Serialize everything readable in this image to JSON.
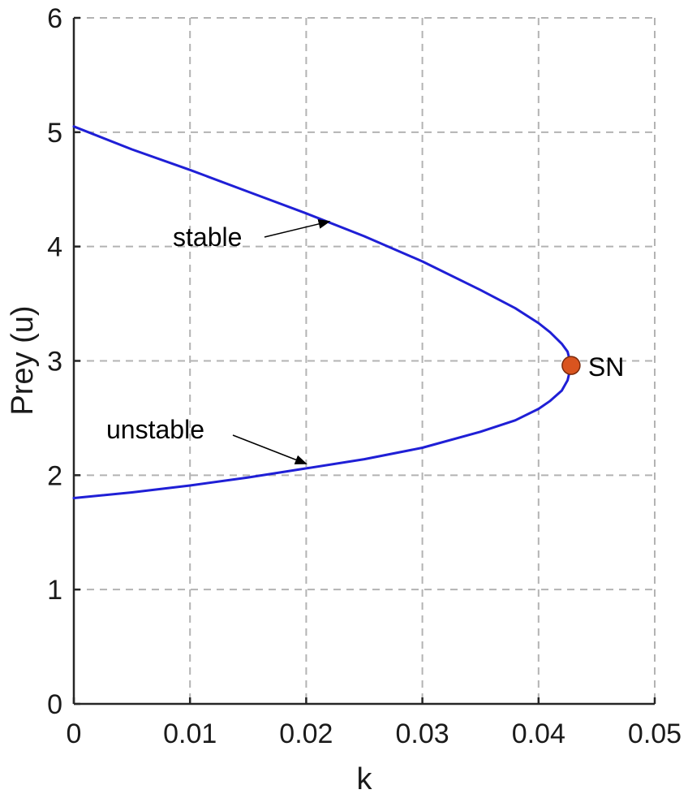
{
  "chart_data": {
    "type": "line",
    "xlabel": "k",
    "ylabel": "Prey (u)",
    "xlim": [
      0,
      0.05
    ],
    "ylim": [
      0,
      6
    ],
    "xticks": [
      0,
      0.01,
      0.02,
      0.03,
      0.04,
      0.05
    ],
    "xtick_labels": [
      "0",
      "0.01",
      "0.02",
      "0.03",
      "0.04",
      "0.05"
    ],
    "yticks": [
      0,
      1,
      2,
      3,
      4,
      5,
      6
    ],
    "ytick_labels": [
      "0",
      "1",
      "2",
      "3",
      "4",
      "5",
      "6"
    ],
    "grid": true,
    "line_color": "#1f1fd6",
    "marker_color": "#d9541f",
    "series": [
      {
        "x": [
          0.0,
          0.005,
          0.01,
          0.015,
          0.02,
          0.025,
          0.03,
          0.035,
          0.038,
          0.04,
          0.041,
          0.042,
          0.0425,
          0.0428
        ],
        "y": [
          5.05,
          4.85,
          4.67,
          4.48,
          4.29,
          4.09,
          3.87,
          3.62,
          3.46,
          3.33,
          3.25,
          3.15,
          3.08,
          2.96
        ]
      },
      {
        "x": [
          0.0,
          0.005,
          0.01,
          0.015,
          0.02,
          0.025,
          0.03,
          0.035,
          0.038,
          0.04,
          0.041,
          0.042,
          0.0425,
          0.0428
        ],
        "y": [
          1.8,
          1.85,
          1.91,
          1.98,
          2.06,
          2.14,
          2.24,
          2.38,
          2.48,
          2.58,
          2.65,
          2.74,
          2.83,
          2.96
        ]
      }
    ],
    "point": {
      "x": 0.0428,
      "y": 2.96,
      "label": "SN"
    },
    "annotations": [
      {
        "text": "stable",
        "target_x": 0.022,
        "target_y": 4.22
      },
      {
        "text": "unstable",
        "target_x": 0.02,
        "target_y": 2.1
      }
    ]
  }
}
